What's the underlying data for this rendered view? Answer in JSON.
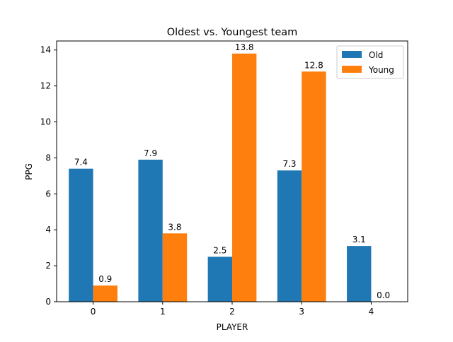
{
  "chart_data": {
    "type": "bar",
    "title": "Oldest vs. Youngest team",
    "xlabel": "PLAYER",
    "ylabel": "PPG",
    "categories": [
      "0",
      "1",
      "2",
      "3",
      "4"
    ],
    "series": [
      {
        "name": "Old",
        "color": "#1f77b4",
        "values": [
          7.4,
          7.9,
          2.5,
          7.3,
          3.1
        ]
      },
      {
        "name": "Young",
        "color": "#ff7f0e",
        "values": [
          0.9,
          3.8,
          13.8,
          12.8,
          0.0
        ]
      }
    ],
    "ylim": [
      0,
      14.5
    ],
    "yticks": [
      0,
      2,
      4,
      6,
      8,
      10,
      12,
      14
    ],
    "legend": "top-right",
    "grid": false
  }
}
